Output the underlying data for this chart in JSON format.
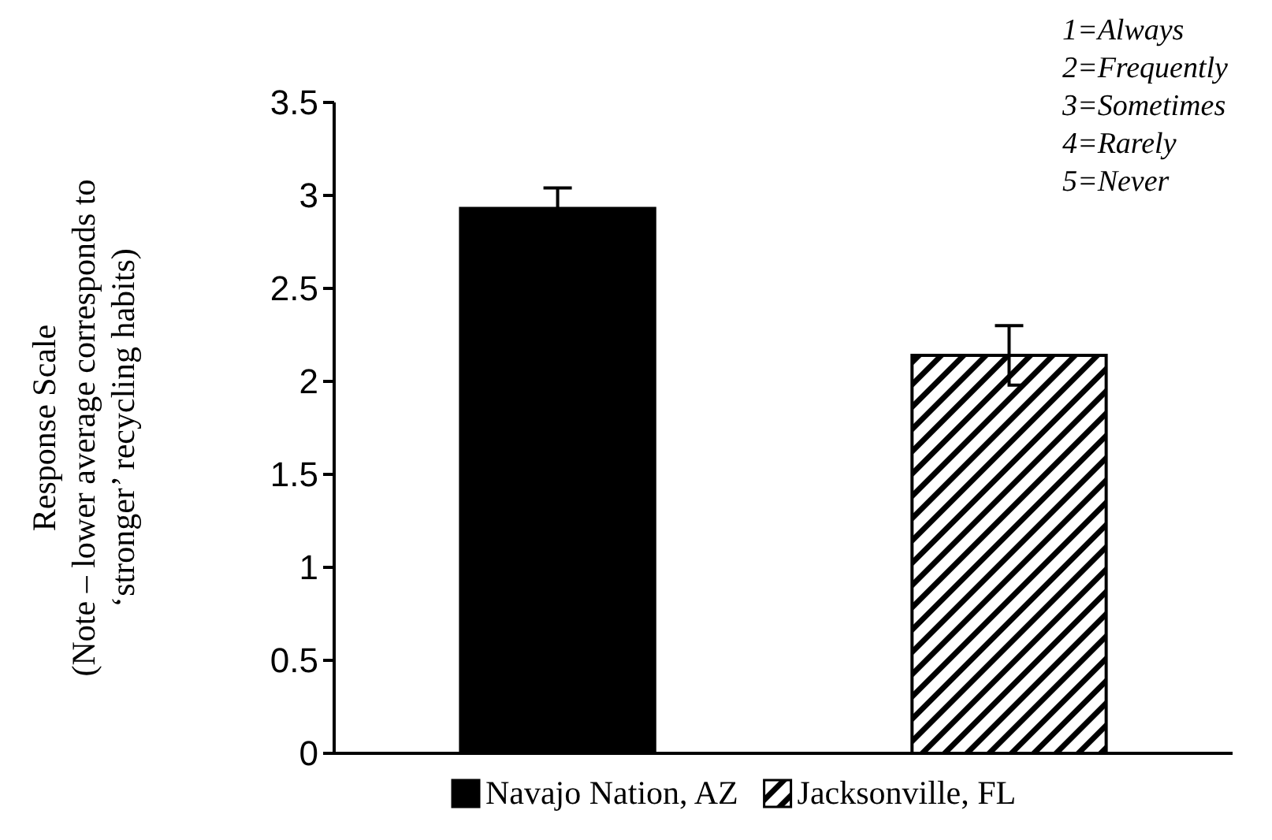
{
  "chart_data": {
    "type": "bar",
    "ylabel": "Response Scale\n(Note – lower average corresponds to\n‘stronger’ recycling habits)",
    "categories": [
      null,
      null
    ],
    "series": [
      {
        "name": "Navajo Nation, AZ",
        "color": "#000000",
        "values": [
          2.93,
          null
        ],
        "errors": [
          0.11,
          null
        ]
      },
      {
        "name": "Jacksonville, FL",
        "color": "#000000",
        "values": [
          null,
          2.14
        ],
        "errors": [
          null,
          0.16
        ]
      }
    ],
    "ylim": [
      0,
      3.5
    ],
    "yticks": [
      0,
      0.5,
      1,
      1.5,
      2,
      2.5,
      3,
      3.5
    ],
    "grid": false,
    "legend": "bottom",
    "annotations": [
      "1=Always",
      "2=Frequently",
      "3=Sometimes",
      "4=Rarely",
      "5=Never"
    ]
  }
}
